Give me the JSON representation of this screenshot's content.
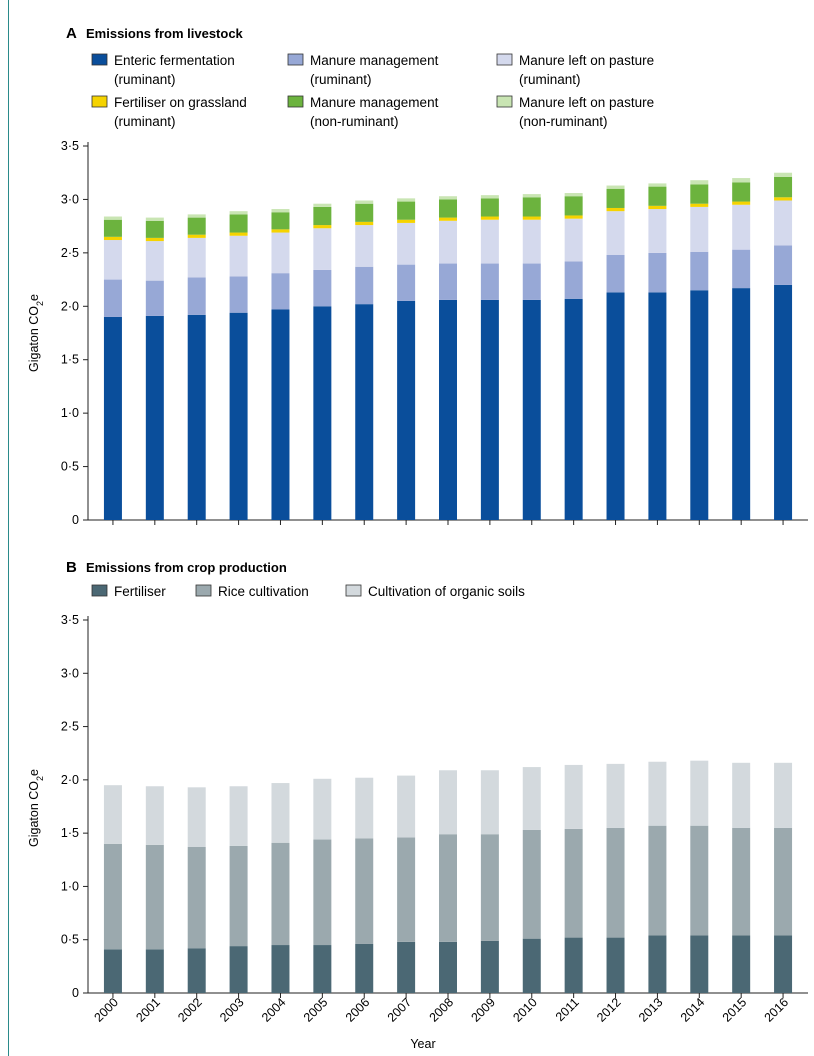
{
  "colors": {
    "enteric": "#0a4e9b",
    "manure_mgmt_rum": "#97a8d6",
    "manure_pasture_rum": "#d4d9ed",
    "fertiliser_grass": "#f5d300",
    "manure_mgmt_nonrum": "#6cb33e",
    "manure_pasture_nonrum": "#c9e5b3",
    "fertiliser": "#4b6874",
    "rice": "#9ba9ae",
    "organic_soils": "#d3d9dd",
    "frame": "#2a8a8a"
  },
  "x_axis_title": "Year",
  "chart_data": [
    {
      "type": "bar",
      "stacked": true,
      "panel_letter": "A",
      "title": "Emissions from livestock",
      "ylabel": "Gigaton CO₂e",
      "ylim": [
        0,
        3.5
      ],
      "yticks": [
        "0",
        "0·5",
        "1·0",
        "1·5",
        "2·0",
        "2·5",
        "3·0",
        "3·5"
      ],
      "legend_placement": "top",
      "categories": [
        "2000",
        "2001",
        "2002",
        "2003",
        "2004",
        "2005",
        "2006",
        "2007",
        "2008",
        "2009",
        "2010",
        "2011",
        "2012",
        "2013",
        "2014",
        "2015",
        "2016"
      ],
      "series": [
        {
          "name_lines": [
            "Enteric fermentation",
            "(ruminant)"
          ],
          "color_key": "enteric",
          "values": [
            1.9,
            1.91,
            1.92,
            1.94,
            1.97,
            2.0,
            2.02,
            2.05,
            2.06,
            2.06,
            2.06,
            2.07,
            2.13,
            2.13,
            2.15,
            2.17,
            2.2
          ]
        },
        {
          "name_lines": [
            "Manure management",
            "(ruminant)"
          ],
          "color_key": "manure_mgmt_rum",
          "values": [
            0.35,
            0.33,
            0.35,
            0.34,
            0.34,
            0.34,
            0.35,
            0.34,
            0.34,
            0.34,
            0.34,
            0.35,
            0.35,
            0.37,
            0.36,
            0.36,
            0.37
          ]
        },
        {
          "name_lines": [
            "Manure left on pasture",
            "(ruminant)"
          ],
          "color_key": "manure_pasture_rum",
          "values": [
            0.37,
            0.37,
            0.37,
            0.38,
            0.38,
            0.39,
            0.39,
            0.39,
            0.4,
            0.41,
            0.41,
            0.4,
            0.41,
            0.41,
            0.42,
            0.42,
            0.42
          ]
        },
        {
          "name_lines": [
            "Fertiliser on grassland",
            "(ruminant)"
          ],
          "color_key": "fertiliser_grass",
          "values": [
            0.03,
            0.03,
            0.03,
            0.03,
            0.03,
            0.03,
            0.03,
            0.03,
            0.03,
            0.03,
            0.03,
            0.03,
            0.03,
            0.03,
            0.03,
            0.03,
            0.03
          ]
        },
        {
          "name_lines": [
            "Manure management",
            "(non-ruminant)"
          ],
          "color_key": "manure_mgmt_nonrum",
          "values": [
            0.16,
            0.16,
            0.16,
            0.17,
            0.16,
            0.17,
            0.17,
            0.17,
            0.17,
            0.17,
            0.18,
            0.18,
            0.18,
            0.18,
            0.18,
            0.18,
            0.19
          ]
        },
        {
          "name_lines": [
            "Manure left on pasture",
            "(non-ruminant)"
          ],
          "color_key": "manure_pasture_nonrum",
          "values": [
            0.03,
            0.03,
            0.03,
            0.03,
            0.03,
            0.03,
            0.03,
            0.03,
            0.03,
            0.03,
            0.03,
            0.03,
            0.03,
            0.03,
            0.04,
            0.04,
            0.04
          ]
        }
      ]
    },
    {
      "type": "bar",
      "stacked": true,
      "panel_letter": "B",
      "title": "Emissions from crop production",
      "ylabel": "Gigaton CO₂e",
      "xlabel": "Year",
      "ylim": [
        0,
        3.5
      ],
      "yticks": [
        "0",
        "0·5",
        "1·0",
        "1·5",
        "2·0",
        "2·5",
        "3·0",
        "3·5"
      ],
      "legend_placement": "top",
      "categories": [
        "2000",
        "2001",
        "2002",
        "2003",
        "2004",
        "2005",
        "2006",
        "2007",
        "2008",
        "2009",
        "2010",
        "2011",
        "2012",
        "2013",
        "2014",
        "2015",
        "2016"
      ],
      "series": [
        {
          "name_lines": [
            "Fertiliser"
          ],
          "color_key": "fertiliser",
          "values": [
            0.41,
            0.41,
            0.42,
            0.44,
            0.45,
            0.45,
            0.46,
            0.48,
            0.48,
            0.49,
            0.51,
            0.52,
            0.52,
            0.54,
            0.54,
            0.54,
            0.54
          ]
        },
        {
          "name_lines": [
            "Rice cultivation"
          ],
          "color_key": "rice",
          "values": [
            0.99,
            0.98,
            0.95,
            0.94,
            0.96,
            0.99,
            0.99,
            0.98,
            1.01,
            1.0,
            1.02,
            1.02,
            1.03,
            1.03,
            1.03,
            1.01,
            1.01
          ]
        },
        {
          "name_lines": [
            "Cultivation of organic soils"
          ],
          "color_key": "organic_soils",
          "values": [
            0.55,
            0.55,
            0.56,
            0.56,
            0.56,
            0.57,
            0.57,
            0.58,
            0.6,
            0.6,
            0.59,
            0.6,
            0.6,
            0.6,
            0.61,
            0.61,
            0.61
          ]
        }
      ]
    }
  ]
}
